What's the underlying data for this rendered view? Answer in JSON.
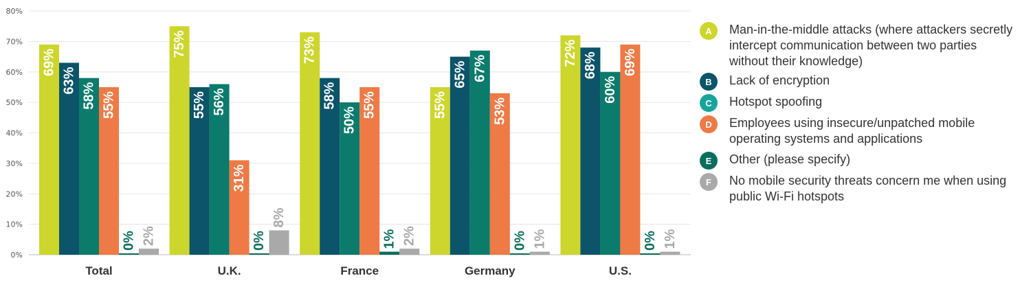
{
  "chart_data": {
    "type": "bar",
    "title": "",
    "xlabel": "",
    "ylabel": "",
    "ylim": [
      0,
      80
    ],
    "yticks": [
      "0%",
      "10%",
      "20%",
      "30%",
      "40%",
      "50%",
      "60%",
      "70%",
      "80%"
    ],
    "grid": true,
    "legend_position": "right",
    "categories": [
      "Total",
      "U.K.",
      "France",
      "Germany",
      "U.S."
    ],
    "series": [
      {
        "name": "Man-in-the-middle attacks (where attackers secretly intercept communication between two parties without their knowledge)",
        "letter": "A",
        "color": "#cdd62c",
        "label_color": "#ffffff",
        "values": [
          69,
          75,
          73,
          55,
          72
        ],
        "labels": [
          "69%",
          "75%",
          "73%",
          "55%",
          "72%"
        ]
      },
      {
        "name": "Lack of encryption",
        "letter": "B",
        "color": "#0b5469",
        "label_color": "#ffffff",
        "values": [
          63,
          55,
          58,
          65,
          68
        ],
        "labels": [
          "63%",
          "55%",
          "58%",
          "65%",
          "68%"
        ]
      },
      {
        "name": "Hotspot spoofing",
        "letter": "C",
        "color": "#0b7b6c",
        "label_color": "#ffffff",
        "values": [
          58,
          56,
          50,
          67,
          60
        ],
        "labels": [
          "58%",
          "56%",
          "50%",
          "67%",
          "60%"
        ]
      },
      {
        "name": "Employees using insecure/unpatched mobile operating systems and applications",
        "letter": "D",
        "color": "#ee7a45",
        "label_color": "#ffffff",
        "values": [
          55,
          31,
          55,
          53,
          69
        ],
        "labels": [
          "55%",
          "31%",
          "55%",
          "53%",
          "69%"
        ]
      },
      {
        "name": "Other (please specify)",
        "letter": "E",
        "color": "#0a6e5d",
        "label_color": "#0a6e5d",
        "values": [
          0,
          0,
          1,
          0,
          0
        ],
        "labels": [
          "0%",
          "0%",
          "1%",
          "0%",
          "0%"
        ]
      },
      {
        "name": "No mobile security threats concern me when using public Wi-Fi hotspots",
        "letter": "F",
        "color": "#a9a9a9",
        "label_color": "#a9a9a9",
        "values": [
          2,
          8,
          2,
          1,
          1
        ],
        "labels": [
          "2%",
          "8%",
          "2%",
          "1%",
          "1%"
        ]
      }
    ]
  },
  "legend": {
    "items": [
      {
        "letter": "A",
        "text": "Man-in-the-middle attacks (where attackers secretly intercept communication between two parties without their knowledge)",
        "badge_color": "#cdd62c"
      },
      {
        "letter": "B",
        "text": "Lack of encryption",
        "badge_color": "#0b5469"
      },
      {
        "letter": "C",
        "text": "Hotspot spoofing",
        "badge_color": "#16a59a"
      },
      {
        "letter": "D",
        "text": "Employees using insecure/unpatched mobile operating systems and applications",
        "badge_color": "#ee7a45"
      },
      {
        "letter": "E",
        "text": "Other (please specify)",
        "badge_color": "#0a6e5d"
      },
      {
        "letter": "F",
        "text": "No mobile security threats concern me when using public Wi-Fi hotspots",
        "badge_color": "#a9a9a9"
      }
    ]
  }
}
